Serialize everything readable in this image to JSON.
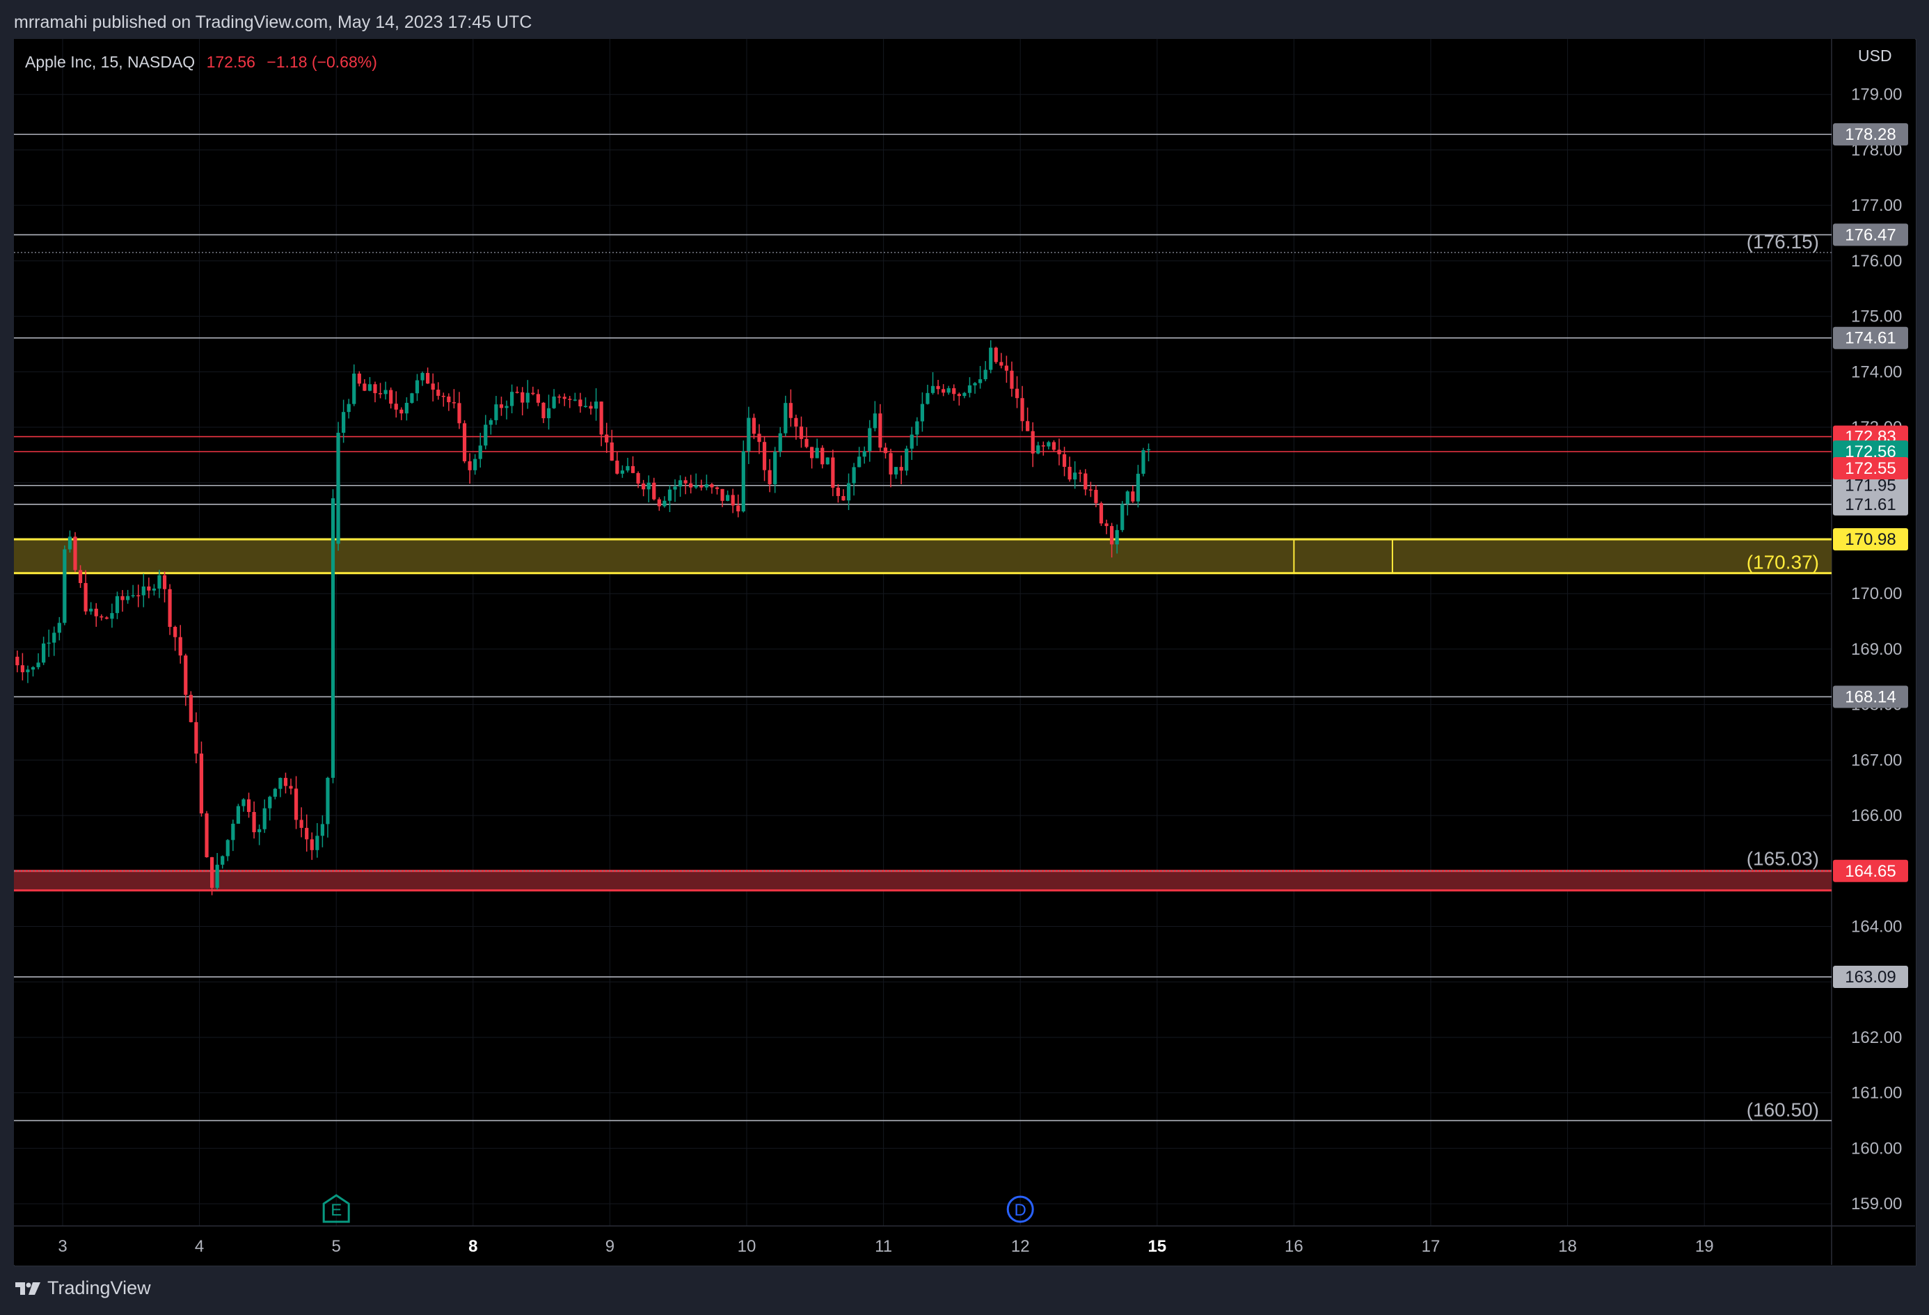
{
  "header": {
    "publish_text": "mrramahi published on TradingView.com, May 14, 2023 17:45 UTC"
  },
  "symbol": {
    "name": "Apple Inc, 15, NASDAQ",
    "price": "172.56",
    "change": "−1.18 (−0.68%)"
  },
  "footer": {
    "brand": "TradingView",
    "logo_icon": "tradingview-logo-icon"
  },
  "colors": {
    "background": "#000000",
    "frame": "#1e222d",
    "up": "#089981",
    "down": "#f23645",
    "grid": "#1a1d24",
    "axis_text": "#b2b5be",
    "yellow": "#ffeb3b",
    "zone_yellow": "#4d4312",
    "zone_red": "#6b1c22",
    "gray_label": "#787b86"
  },
  "chart_data": {
    "type": "candlestick",
    "currency": "USD",
    "interval": "15",
    "ylim": [
      158.6,
      180.0
    ],
    "y_ticks": [
      "159.00",
      "160.00",
      "161.00",
      "162.00",
      "163.00",
      "164.00",
      "165.00",
      "166.00",
      "167.00",
      "168.00",
      "169.00",
      "170.00",
      "171.00",
      "172.00",
      "173.00",
      "174.00",
      "175.00",
      "176.00",
      "177.00",
      "178.00",
      "179.00"
    ],
    "x_ticks": [
      {
        "label": "3",
        "day": 0,
        "bold": false
      },
      {
        "label": "4",
        "day": 1,
        "bold": false
      },
      {
        "label": "5",
        "day": 2,
        "bold": false
      },
      {
        "label": "8",
        "day": 3,
        "bold": true
      },
      {
        "label": "9",
        "day": 4,
        "bold": false
      },
      {
        "label": "10",
        "day": 5,
        "bold": false
      },
      {
        "label": "11",
        "day": 6,
        "bold": false
      },
      {
        "label": "12",
        "day": 7,
        "bold": false
      },
      {
        "label": "15",
        "day": 8,
        "bold": true
      },
      {
        "label": "16",
        "day": 9,
        "bold": false
      },
      {
        "label": "17",
        "day": 10,
        "bold": false
      },
      {
        "label": "18",
        "day": 11,
        "bold": false
      },
      {
        "label": "19",
        "day": 12,
        "bold": false
      }
    ],
    "xlim": [
      -0.37,
      12.9
    ],
    "key_points": [
      [
        -0.37,
        168.9
      ],
      [
        -0.2,
        168.6
      ],
      [
        -0.1,
        169.2
      ],
      [
        0.0,
        169.6
      ],
      [
        0.02,
        170.6
      ],
      [
        0.06,
        171.0
      ],
      [
        0.12,
        170.3
      ],
      [
        0.22,
        169.6
      ],
      [
        0.32,
        169.5
      ],
      [
        0.42,
        169.8
      ],
      [
        0.55,
        170.1
      ],
      [
        0.64,
        169.9
      ],
      [
        0.72,
        170.5
      ],
      [
        0.8,
        169.6
      ],
      [
        0.88,
        168.9
      ],
      [
        0.95,
        167.6
      ],
      [
        1.0,
        167.2
      ],
      [
        1.05,
        165.4
      ],
      [
        1.1,
        164.8
      ],
      [
        1.15,
        165.0
      ],
      [
        1.22,
        165.5
      ],
      [
        1.3,
        166.3
      ],
      [
        1.38,
        166.2
      ],
      [
        1.45,
        165.6
      ],
      [
        1.52,
        166.3
      ],
      [
        1.6,
        166.8
      ],
      [
        1.68,
        166.4
      ],
      [
        1.76,
        165.8
      ],
      [
        1.84,
        165.4
      ],
      [
        1.9,
        165.6
      ],
      [
        1.95,
        165.8
      ],
      [
        2.0,
        172.3
      ],
      [
        2.08,
        173.4
      ],
      [
        2.15,
        173.8
      ],
      [
        2.25,
        173.6
      ],
      [
        2.35,
        173.7
      ],
      [
        2.42,
        173.3
      ],
      [
        2.5,
        173.4
      ],
      [
        2.58,
        173.7
      ],
      [
        2.68,
        173.9
      ],
      [
        2.78,
        173.7
      ],
      [
        2.88,
        173.3
      ],
      [
        2.95,
        172.6
      ],
      [
        3.0,
        172.1
      ],
      [
        3.05,
        172.7
      ],
      [
        3.15,
        173.1
      ],
      [
        3.25,
        173.5
      ],
      [
        3.35,
        173.6
      ],
      [
        3.45,
        173.5
      ],
      [
        3.52,
        173.2
      ],
      [
        3.6,
        173.5
      ],
      [
        3.68,
        173.6
      ],
      [
        3.75,
        173.4
      ],
      [
        3.82,
        173.6
      ],
      [
        3.92,
        173.4
      ],
      [
        4.0,
        172.5
      ],
      [
        4.08,
        172.2
      ],
      [
        4.2,
        172.1
      ],
      [
        4.3,
        172.0
      ],
      [
        4.38,
        171.7
      ],
      [
        4.45,
        171.9
      ],
      [
        4.55,
        172.0
      ],
      [
        4.62,
        172.0
      ],
      [
        4.7,
        171.9
      ],
      [
        4.8,
        171.8
      ],
      [
        4.88,
        171.7
      ],
      [
        4.95,
        171.5
      ],
      [
        5.0,
        172.6
      ],
      [
        5.05,
        173.2
      ],
      [
        5.12,
        172.5
      ],
      [
        5.18,
        172.0
      ],
      [
        5.25,
        172.8
      ],
      [
        5.3,
        173.6
      ],
      [
        5.38,
        173.1
      ],
      [
        5.45,
        172.7
      ],
      [
        5.52,
        172.5
      ],
      [
        5.58,
        172.5
      ],
      [
        5.65,
        172.0
      ],
      [
        5.72,
        171.8
      ],
      [
        5.8,
        172.1
      ],
      [
        5.88,
        172.7
      ],
      [
        5.96,
        173.1
      ],
      [
        6.0,
        172.7
      ],
      [
        6.05,
        172.3
      ],
      [
        6.12,
        172.1
      ],
      [
        6.2,
        172.6
      ],
      [
        6.28,
        173.2
      ],
      [
        6.35,
        173.6
      ],
      [
        6.42,
        173.7
      ],
      [
        6.5,
        173.8
      ],
      [
        6.58,
        173.6
      ],
      [
        6.65,
        173.9
      ],
      [
        6.72,
        173.7
      ],
      [
        6.8,
        174.3
      ],
      [
        6.87,
        174.1
      ],
      [
        6.95,
        173.8
      ],
      [
        7.0,
        173.4
      ],
      [
        7.08,
        172.8
      ],
      [
        7.15,
        172.5
      ],
      [
        7.22,
        172.6
      ],
      [
        7.3,
        172.4
      ],
      [
        7.38,
        172.2
      ],
      [
        7.45,
        172.4
      ],
      [
        7.52,
        171.8
      ],
      [
        7.58,
        171.5
      ],
      [
        7.64,
        171.3
      ],
      [
        7.7,
        171.0
      ],
      [
        7.78,
        171.6
      ],
      [
        7.84,
        171.8
      ],
      [
        7.9,
        172.3
      ],
      [
        7.94,
        172.6
      ]
    ],
    "horizontal_lines": [
      {
        "price": 178.28,
        "color": "#b2b5be",
        "label": "178.28",
        "label_bg": "#787b86",
        "label_color": "#ffffff"
      },
      {
        "price": 176.47,
        "color": "#b2b5be",
        "label": "176.47",
        "label_bg": "#787b86",
        "label_color": "#ffffff"
      },
      {
        "price": 174.61,
        "color": "#b2b5be",
        "label": "174.61",
        "label_bg": "#787b86",
        "label_color": "#ffffff"
      },
      {
        "price": 172.83,
        "color": "#f23645",
        "label": "172.83",
        "label_bg": "#f23645",
        "label_color": "#ffffff"
      },
      {
        "price": 172.56,
        "color": "#f23645",
        "label": "172.56",
        "label_bg": "#089981",
        "label_color": "#ffffff"
      },
      {
        "price": 171.95,
        "color": "#b2b5be",
        "label": "171.95",
        "label_bg": "#b2b5be",
        "label_color": "#131722"
      },
      {
        "price": 171.61,
        "color": "#b2b5be",
        "label": "171.61",
        "label_bg": "#b2b5be",
        "label_color": "#131722"
      },
      {
        "price": 168.14,
        "color": "#b2b5be",
        "label": "168.14",
        "label_bg": "#787b86",
        "label_color": "#ffffff"
      },
      {
        "price": 163.09,
        "color": "#b2b5be",
        "label": "163.09",
        "label_bg": "#b2b5be",
        "label_color": "#131722"
      },
      {
        "price": 160.5,
        "color": "#b2b5be",
        "label": "",
        "label_bg": "",
        "label_color": ""
      }
    ],
    "extra_axis_labels": [
      {
        "price": 172.26,
        "label": "172.55",
        "label_bg": "#f23645",
        "label_color": "#ffffff"
      }
    ],
    "dotted_lines": [
      {
        "price": 176.15,
        "color": "#787b86"
      },
      {
        "price": 165.0,
        "color": "#787b86"
      }
    ],
    "zones": [
      {
        "top": 170.98,
        "bottom": 170.37,
        "fill": "#4d4312",
        "border": "#ffeb3b",
        "label_top": "170.98",
        "label_bg": "#ffeb3b",
        "label_color": "#131722"
      },
      {
        "top": 165.0,
        "bottom": 164.65,
        "fill": "#6b1c22",
        "border": "#f23645",
        "label_top": "164.65",
        "label_bg": "#f23645",
        "label_color": "#ffffff"
      }
    ],
    "zone_dividers_days": [
      9.0,
      9.72
    ],
    "annotations": [
      {
        "text": "(176.15)",
        "price": 176.15,
        "color": "#b2b5be"
      },
      {
        "text": "(170.37)",
        "price": 170.37,
        "color": "#ffeb3b"
      },
      {
        "text": "(165.03)",
        "price": 165.03,
        "color": "#b2b5be"
      },
      {
        "text": "(160.50)",
        "price": 160.5,
        "color": "#b2b5be"
      }
    ],
    "events": [
      {
        "letter": "E",
        "day": 2.0,
        "color": "#089981",
        "shape": "pentagon"
      },
      {
        "letter": "D",
        "day": 7.0,
        "color": "#2962ff",
        "shape": "circle"
      }
    ]
  }
}
